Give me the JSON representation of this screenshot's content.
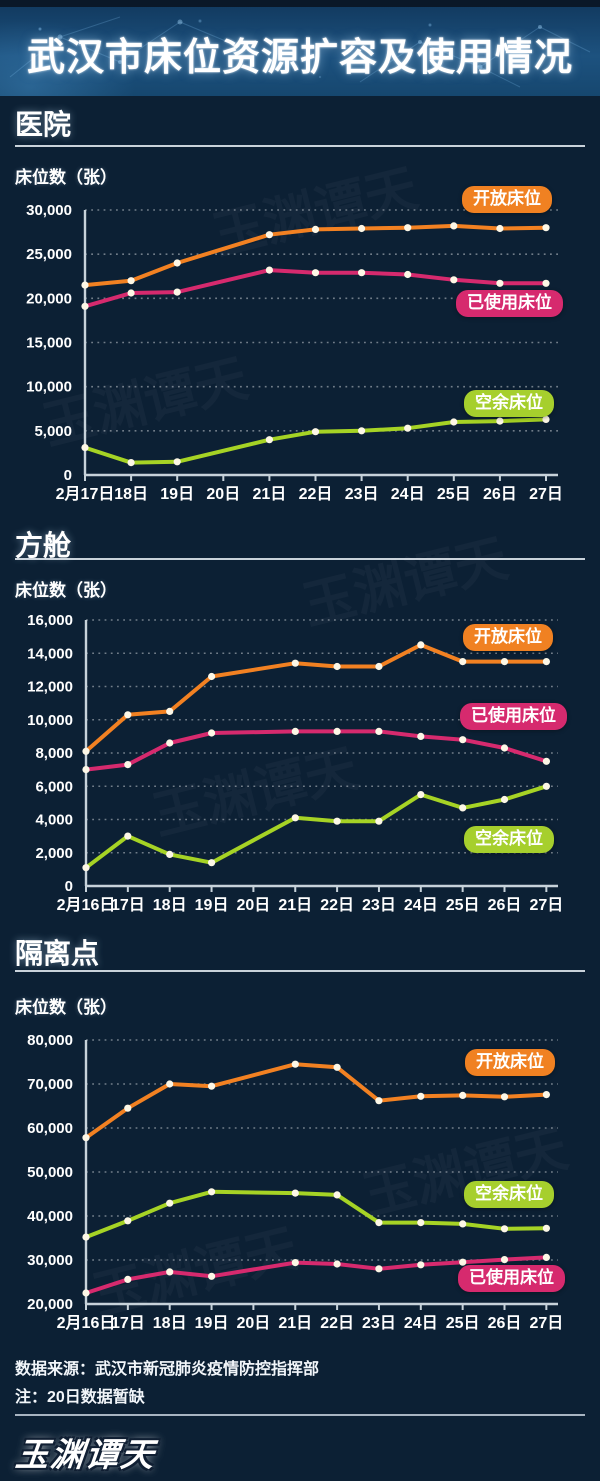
{
  "header": {
    "title": "武汉市床位资源扩容及使用情况"
  },
  "colors": {
    "background": "#0c2034",
    "header_blue": "#1d527f",
    "open_beds_orange": "#f28122",
    "used_beds_pink": "#d62a6e",
    "free_beds_green": "#a6d325",
    "marker_dot": "#fdf7e6",
    "axis_line": "#c7d2da"
  },
  "sections": [
    {
      "title": "医院",
      "axis_title": "床位数（张）"
    },
    {
      "title": "方舱",
      "axis_title": "床位数（张）"
    },
    {
      "title": "隔离点",
      "axis_title": "床位数（张）"
    }
  ],
  "legend_labels": {
    "open": "开放床位",
    "used": "已使用床位",
    "free": "空余床位"
  },
  "chart_data": [
    {
      "id": "hospital",
      "type": "line",
      "title": "医院",
      "ylabel": "床位数（张）",
      "ylim": [
        0,
        30000
      ],
      "y_step": 5000,
      "y_tick_labels": [
        "30,000",
        "25,000",
        "20,000",
        "15,000",
        "10,000",
        "5,000",
        "0"
      ],
      "grid": "dotted-horizontal",
      "categories": [
        "2月17日",
        "18日",
        "19日",
        "20日",
        "21日",
        "22日",
        "23日",
        "24日",
        "25日",
        "26日",
        "27日"
      ],
      "missing_data_category": "20日",
      "series": [
        {
          "name": "开放床位",
          "color": "#f28122",
          "values": [
            21500,
            22000,
            24000,
            null,
            27200,
            27800,
            27900,
            28000,
            28200,
            27900,
            28000
          ]
        },
        {
          "name": "已使用床位",
          "color": "#d62a6e",
          "values": [
            19100,
            20600,
            20700,
            null,
            23200,
            22900,
            22900,
            22700,
            22100,
            21700,
            21700
          ]
        },
        {
          "name": "空余床位",
          "color": "#a6d325",
          "values": [
            3100,
            1400,
            1500,
            null,
            4000,
            4900,
            5000,
            5300,
            6000,
            6100,
            6300
          ]
        }
      ]
    },
    {
      "id": "fangcang",
      "type": "line",
      "title": "方舱",
      "ylabel": "床位数（张）",
      "ylim": [
        0,
        16000
      ],
      "y_step": 2000,
      "y_tick_labels": [
        "16,000",
        "14,000",
        "12,000",
        "10,000",
        "8,000",
        "6,000",
        "4,000",
        "2,000",
        "0"
      ],
      "grid": "dotted-horizontal",
      "categories": [
        "2月16日",
        "17日",
        "18日",
        "19日",
        "20日",
        "21日",
        "22日",
        "23日",
        "24日",
        "25日",
        "26日",
        "27日"
      ],
      "missing_data_category": "20日",
      "series": [
        {
          "name": "开放床位",
          "color": "#f28122",
          "values": [
            8100,
            10300,
            10500,
            12600,
            null,
            13400,
            13200,
            13200,
            14500,
            13500,
            13500,
            13500
          ]
        },
        {
          "name": "已使用床位",
          "color": "#d62a6e",
          "values": [
            7000,
            7300,
            8600,
            9200,
            null,
            9300,
            9300,
            9300,
            9000,
            8800,
            8300,
            7500
          ]
        },
        {
          "name": "空余床位",
          "color": "#a6d325",
          "values": [
            1100,
            3000,
            1900,
            1400,
            null,
            4100,
            3900,
            3900,
            5500,
            4700,
            5200,
            6000
          ]
        }
      ]
    },
    {
      "id": "isolation",
      "type": "line",
      "title": "隔离点",
      "ylabel": "床位数（张）",
      "ylim": [
        20000,
        80000
      ],
      "y_step": 10000,
      "y_tick_labels": [
        "80,000",
        "70,000",
        "60,000",
        "50,000",
        "40,000",
        "30,000",
        "20,000"
      ],
      "grid": "dotted-horizontal",
      "categories": [
        "2月16日",
        "17日",
        "18日",
        "19日",
        "20日",
        "21日",
        "22日",
        "23日",
        "24日",
        "25日",
        "26日",
        "27日"
      ],
      "missing_data_category": "20日",
      "series": [
        {
          "name": "开放床位",
          "color": "#f28122",
          "values": [
            57800,
            64500,
            70000,
            69500,
            null,
            74500,
            73800,
            66200,
            67200,
            67400,
            67100,
            67600
          ]
        },
        {
          "name": "已使用床位",
          "color": "#d62a6e",
          "values": [
            22500,
            25600,
            27300,
            26300,
            null,
            29400,
            29100,
            28000,
            28900,
            29500,
            30100,
            30600
          ]
        },
        {
          "name": "空余床位",
          "color": "#a6d325",
          "values": [
            35200,
            38900,
            42900,
            45500,
            null,
            45200,
            44800,
            38500,
            38500,
            38200,
            37100,
            37200
          ]
        }
      ]
    }
  ],
  "footer": {
    "source": "数据来源：武汉市新冠肺炎疫情防控指挥部",
    "note": "注：20日数据暂缺",
    "logo": "玉渊谭天"
  }
}
